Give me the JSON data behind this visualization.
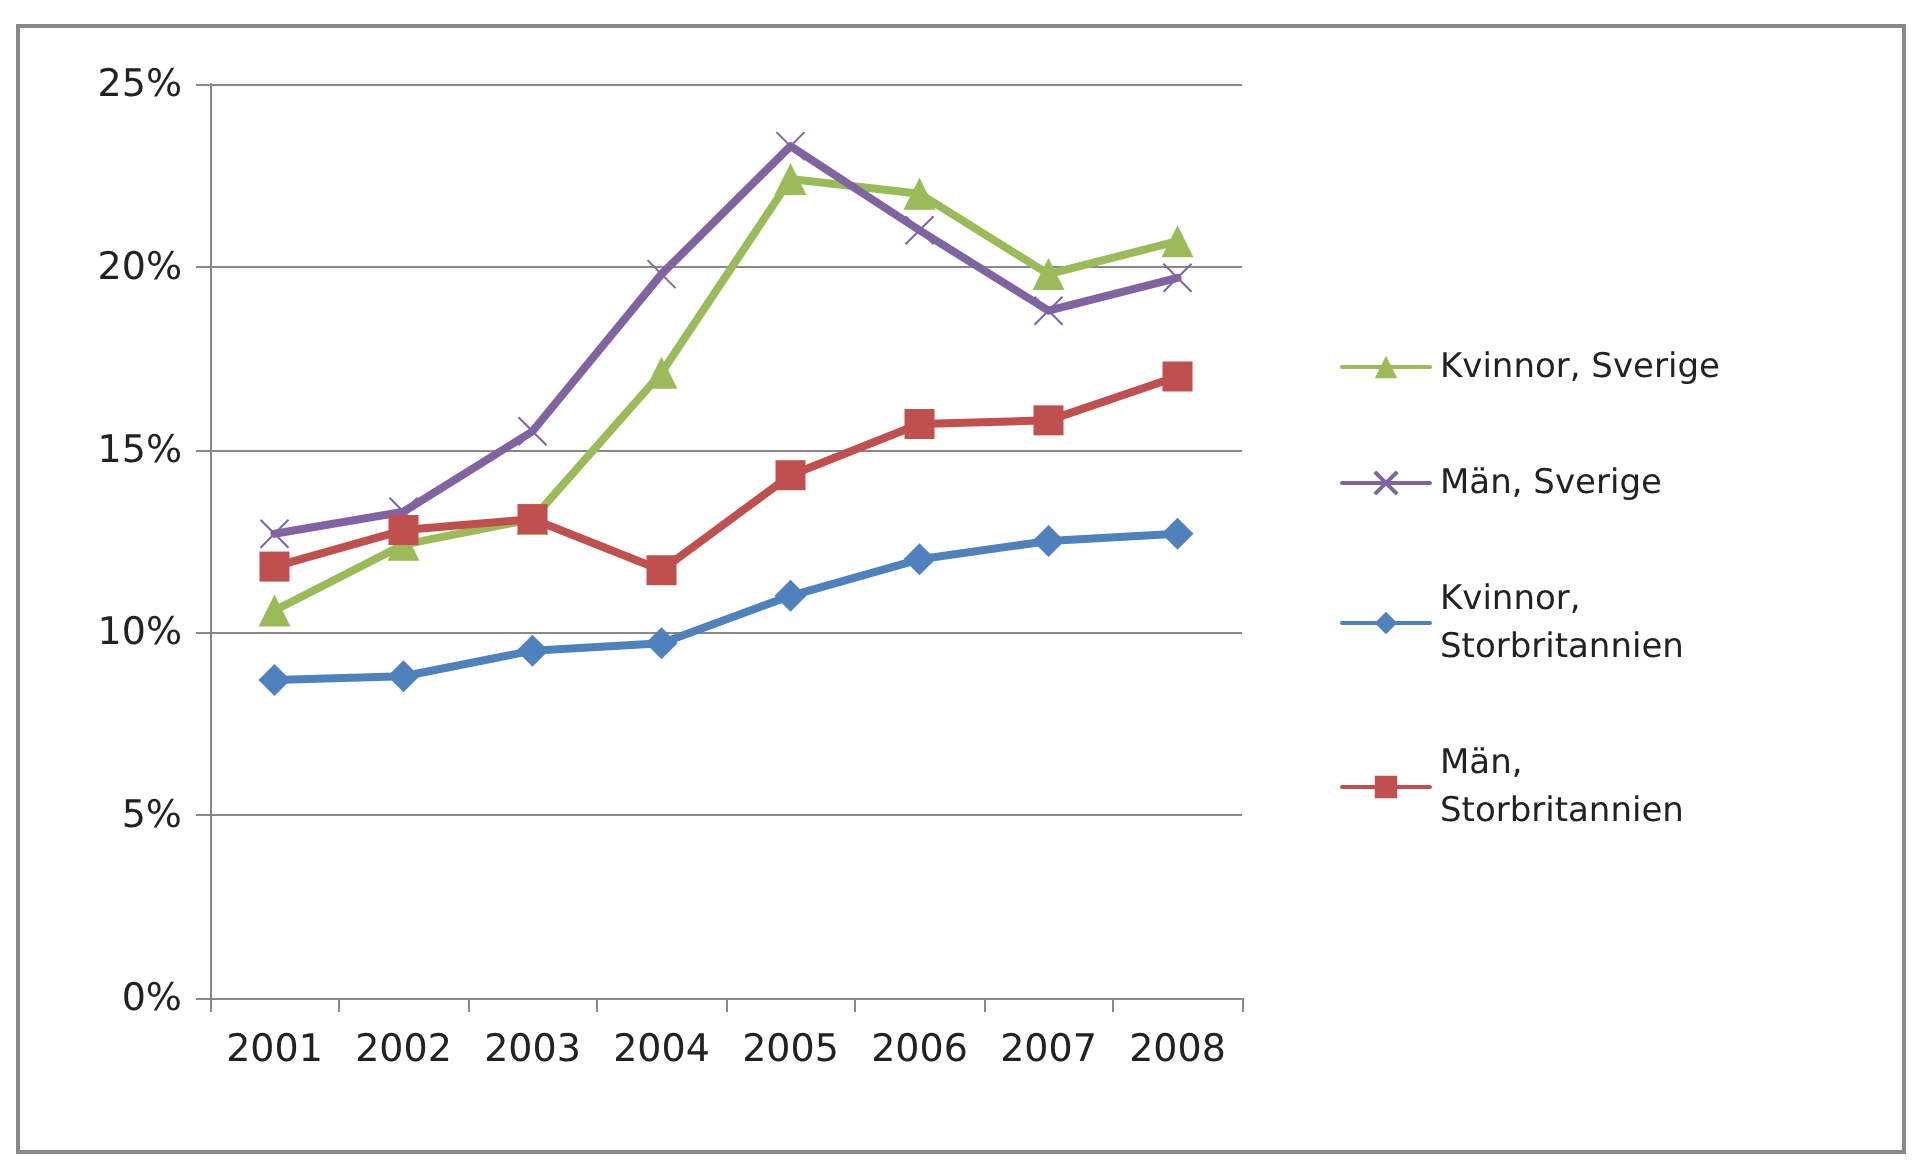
{
  "chart_data": {
    "type": "line",
    "categories": [
      "2001",
      "2002",
      "2003",
      "2004",
      "2005",
      "2006",
      "2007",
      "2008"
    ],
    "series": [
      {
        "name": "Kvinnor, Sverige",
        "color": "#9bbb59",
        "marker": "triangle",
        "values": [
          10.6,
          12.4,
          13.1,
          17.1,
          22.4,
          22.0,
          19.8,
          20.7
        ]
      },
      {
        "name": "Män, Sverige",
        "color": "#8064a2",
        "marker": "cross",
        "values": [
          12.7,
          13.3,
          15.5,
          19.8,
          23.3,
          21.0,
          18.8,
          19.7
        ]
      },
      {
        "name": "Kvinnor, Storbritannien",
        "color": "#4f81bd",
        "marker": "diamond",
        "values": [
          8.7,
          8.8,
          9.5,
          9.7,
          11.0,
          12.0,
          12.5,
          12.7
        ]
      },
      {
        "name": "Män, Storbritannien",
        "color": "#c0504d",
        "marker": "square",
        "values": [
          11.8,
          12.8,
          13.1,
          11.7,
          14.3,
          15.7,
          15.8,
          17.0
        ]
      }
    ],
    "ylim": [
      0,
      25
    ],
    "yticks": [
      {
        "value": 0,
        "label": "0%"
      },
      {
        "value": 5,
        "label": "5%"
      },
      {
        "value": 10,
        "label": "10%"
      },
      {
        "value": 15,
        "label": "15%"
      },
      {
        "value": 20,
        "label": "20%"
      },
      {
        "value": 25,
        "label": "25%"
      }
    ],
    "grid": "y",
    "legend": "right",
    "line_style": "solid"
  }
}
